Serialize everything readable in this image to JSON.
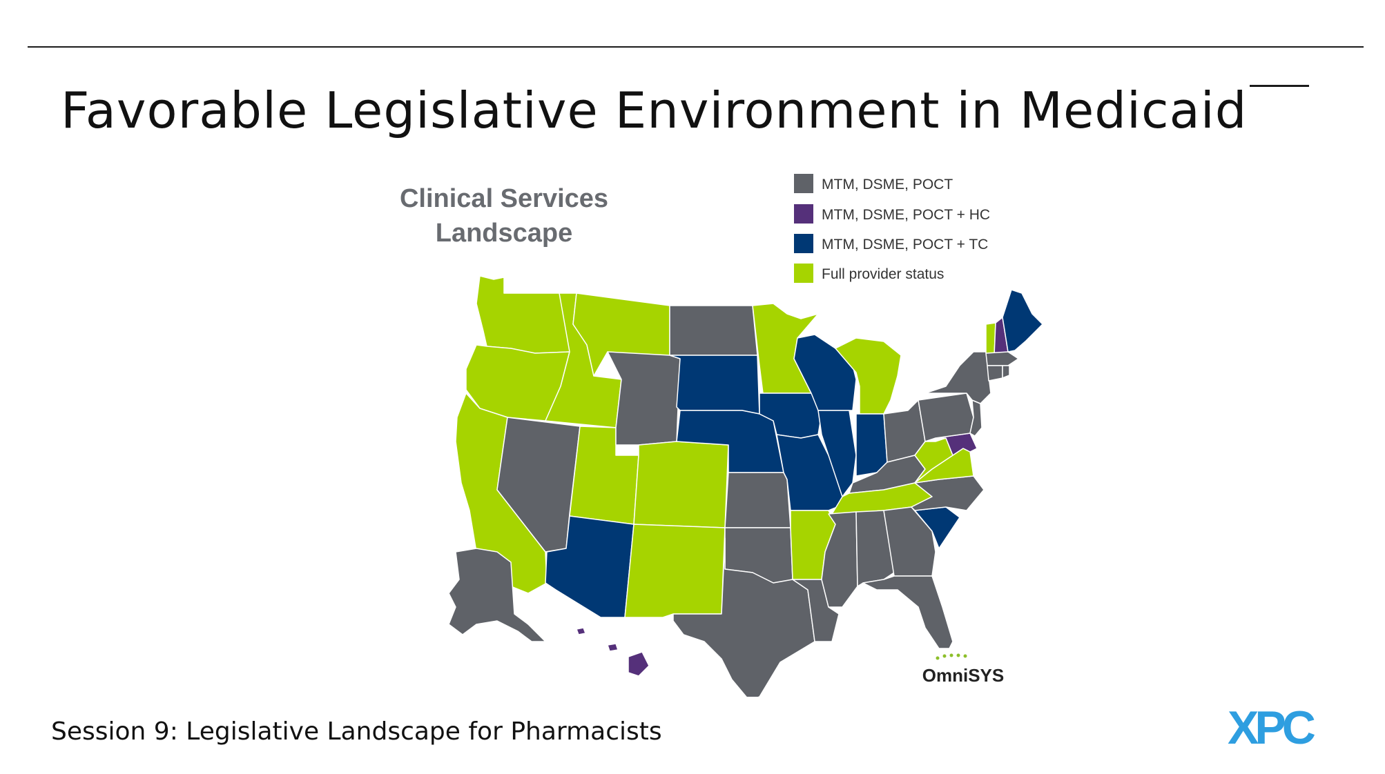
{
  "slide": {
    "title": "Favorable Legislative Environment in Medicaid",
    "footer": "Session 9: Legislative Landscape for Pharmacists",
    "logo_text": "XPC",
    "logo_color": "#2e9ee0"
  },
  "map": {
    "title_line1": "Clinical Services",
    "title_line2": "Landscape",
    "brand": "OmniSYS",
    "legend": [
      {
        "label": "MTM, DSME, POCT",
        "color": "#5f6268"
      },
      {
        "label": "MTM, DSME, POCT + HC",
        "color": "#55307a"
      },
      {
        "label": "MTM, DSME, POCT + TC",
        "color": "#003874"
      },
      {
        "label": "Full provider status",
        "color": "#a6d400"
      }
    ],
    "state_categories": {
      "MTM, DSME, POCT": [
        "ND",
        "WY",
        "NV",
        "KS",
        "OK",
        "TX",
        "LA",
        "MS",
        "AL",
        "GA",
        "FL",
        "KY",
        "OH",
        "PA",
        "NY",
        "NJ",
        "NC",
        "AK",
        "MA",
        "CT",
        "RI"
      ],
      "MTM, DSME, POCT + HC": [
        "NH",
        "MD",
        "HI"
      ],
      "MTM, DSME, POCT + TC": [
        "SD",
        "NE",
        "IA",
        "MO",
        "WI",
        "IL",
        "IN",
        "AZ",
        "SC",
        "ME"
      ],
      "Full provider status": [
        "WA",
        "OR",
        "CA",
        "ID",
        "MT",
        "UT",
        "CO",
        "NM",
        "MN",
        "MI",
        "AR",
        "TN",
        "WV",
        "VA",
        "VT"
      ]
    }
  }
}
